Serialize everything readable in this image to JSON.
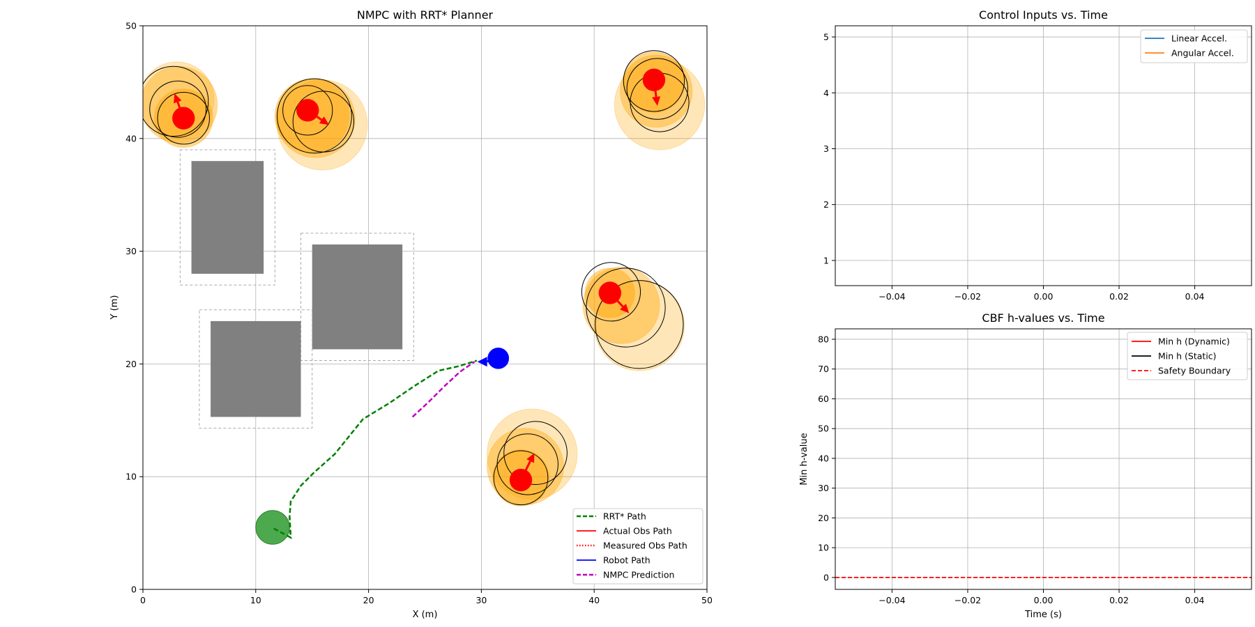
{
  "chart_data": [
    {
      "type": "scatter",
      "title": "NMPC with RRT* Planner",
      "xlabel": "X (m)",
      "ylabel": "Y (m)",
      "xlim": [
        0,
        50
      ],
      "ylim": [
        0,
        50
      ],
      "xticks": [
        0,
        10,
        20,
        30,
        40,
        50
      ],
      "yticks": [
        0,
        10,
        20,
        30,
        40,
        50
      ],
      "grid": true,
      "legend_position": "lower-right",
      "legend": [
        {
          "label": "RRT* Path",
          "color": "#008000",
          "style": "dashed"
        },
        {
          "label": "Actual Obs Path",
          "color": "#ff0000",
          "style": "solid"
        },
        {
          "label": "Measured Obs Path",
          "color": "#ff0000",
          "style": "dotted"
        },
        {
          "label": "Robot Path",
          "color": "#0000ff",
          "style": "solid"
        },
        {
          "label": "NMPC Prediction",
          "color": "#bf00bf",
          "style": "dashed"
        }
      ],
      "static_obstacles": [
        {
          "x0": 4.3,
          "y0": 28.0,
          "x1": 10.7,
          "y1": 38.0,
          "margin": 1.0
        },
        {
          "x0": 15.0,
          "y0": 21.3,
          "x1": 23.0,
          "y1": 30.6,
          "margin": 1.0
        },
        {
          "x0": 6.0,
          "y0": 15.3,
          "x1": 14.0,
          "y1": 23.8,
          "margin": 1.0
        }
      ],
      "rrt_path": [
        [
          11.6,
          5.4
        ],
        [
          13.1,
          4.6
        ],
        [
          13.0,
          6.4
        ],
        [
          13.1,
          7.8
        ],
        [
          14.0,
          9.2
        ],
        [
          15.2,
          10.4
        ],
        [
          17.0,
          12.0
        ],
        [
          19.5,
          15.1
        ],
        [
          21.8,
          16.5
        ],
        [
          24.0,
          18.0
        ],
        [
          26.2,
          19.4
        ],
        [
          28.0,
          19.8
        ],
        [
          29.6,
          20.3
        ]
      ],
      "nmpc_prediction": [
        [
          23.9,
          15.3
        ],
        [
          25.3,
          16.6
        ],
        [
          26.7,
          18.0
        ],
        [
          28.1,
          19.3
        ],
        [
          29.4,
          20.2
        ]
      ],
      "robot": {
        "x": 31.5,
        "y": 20.5,
        "radius": 0.95,
        "color": "#0000ff",
        "heading_deg": 180
      },
      "goal": {
        "x": 11.5,
        "y": 5.5,
        "radius": 1.5,
        "color": "#2e9a2e"
      },
      "dynamic_obstacles": [
        {
          "x": 3.6,
          "y": 41.8,
          "radius": 1.0,
          "velocity": [
            -0.8,
            2.2
          ],
          "uncertainty": [
            [
              3.6,
              41.8,
              2.6
            ],
            [
              3.2,
              43.0,
              3.4
            ],
            [
              3.0,
              43.5,
              3.3
            ]
          ],
          "predicted": [
            [
              3.6,
              41.8,
              2.3
            ],
            [
              3.1,
              42.6,
              2.5
            ],
            [
              2.7,
              43.3,
              3.1
            ]
          ]
        },
        {
          "x": 14.6,
          "y": 42.5,
          "radius": 1.0,
          "velocity": [
            1.9,
            -1.3
          ],
          "uncertainty": [
            [
              15.0,
              42.0,
              3.3
            ],
            [
              15.3,
              41.8,
              3.5
            ],
            [
              15.9,
              41.2,
              4.0
            ]
          ],
          "predicted": [
            [
              14.6,
              42.5,
              2.2
            ],
            [
              15.2,
              42.0,
              3.3
            ],
            [
              16.0,
              41.5,
              2.7
            ]
          ]
        },
        {
          "x": 45.3,
          "y": 45.2,
          "radius": 1.0,
          "velocity": [
            0.3,
            -2.3
          ],
          "uncertainty": [
            [
              45.3,
              45.0,
              2.7
            ],
            [
              45.5,
              44.2,
              3.2
            ],
            [
              45.8,
              43.0,
              4.0
            ]
          ],
          "predicted": [
            [
              45.3,
              45.1,
              2.7
            ],
            [
              45.6,
              44.4,
              2.7
            ],
            [
              45.8,
              43.2,
              2.6
            ]
          ]
        },
        {
          "x": 41.4,
          "y": 26.3,
          "radius": 1.0,
          "velocity": [
            1.7,
            -1.8
          ],
          "uncertainty": [
            [
              41.4,
              26.3,
              2.2
            ],
            [
              42.4,
              25.2,
              3.4
            ],
            [
              44.0,
              23.4,
              4.0
            ]
          ],
          "predicted": [
            [
              41.5,
              26.4,
              2.6
            ],
            [
              42.8,
              25.0,
              3.5
            ],
            [
              44.0,
              23.5,
              3.9
            ]
          ]
        },
        {
          "x": 33.5,
          "y": 9.7,
          "radius": 1.0,
          "velocity": [
            1.2,
            2.4
          ],
          "uncertainty": [
            [
              33.5,
              9.9,
              2.5
            ],
            [
              33.9,
              10.9,
              3.4
            ],
            [
              34.5,
              12.0,
              4.0
            ]
          ],
          "predicted": [
            [
              33.5,
              9.9,
              2.4
            ],
            [
              34.1,
              11.1,
              2.7
            ],
            [
              34.8,
              12.1,
              2.8
            ]
          ]
        }
      ]
    },
    {
      "type": "line",
      "title": "Control Inputs vs. Time",
      "xlabel": "",
      "ylabel": "",
      "xlim": [
        -0.055,
        0.055
      ],
      "ylim": [
        0.55,
        5.2
      ],
      "xticks": [
        -0.04,
        -0.02,
        0.0,
        0.02,
        0.04
      ],
      "xtick_labels": [
        "−0.04",
        "−0.02",
        "0.00",
        "0.02",
        "0.04"
      ],
      "yticks": [
        1,
        2,
        3,
        4,
        5
      ],
      "grid": true,
      "legend_position": "top-right",
      "series": [
        {
          "name": "Linear Accel.",
          "color": "#1f77b4",
          "style": "solid",
          "x": [],
          "y": []
        },
        {
          "name": "Angular Accel.",
          "color": "#ff7f0e",
          "style": "solid",
          "x": [],
          "y": []
        }
      ]
    },
    {
      "type": "line",
      "title": "CBF h-values vs. Time",
      "xlabel": "Time (s)",
      "ylabel": "Min h-value",
      "xlim": [
        -0.055,
        0.055
      ],
      "ylim": [
        -4,
        83.5
      ],
      "xticks": [
        -0.04,
        -0.02,
        0.0,
        0.02,
        0.04
      ],
      "xtick_labels": [
        "−0.04",
        "−0.02",
        "0.00",
        "0.02",
        "0.04"
      ],
      "yticks": [
        0,
        10,
        20,
        30,
        40,
        50,
        60,
        70,
        80
      ],
      "grid": true,
      "legend_position": "top-right",
      "series": [
        {
          "name": "Min h (Dynamic)",
          "color": "#ff0000",
          "style": "solid",
          "x": [],
          "y": []
        },
        {
          "name": "Min h (Static)",
          "color": "#000000",
          "style": "solid",
          "x": [],
          "y": []
        },
        {
          "name": "Safety Boundary",
          "color": "#ff0000",
          "style": "dashed",
          "hline": 0
        }
      ]
    }
  ]
}
